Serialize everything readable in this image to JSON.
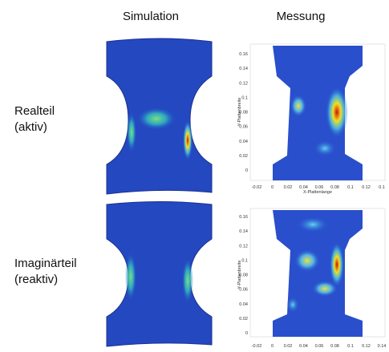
{
  "columns": {
    "simulation": "Simulation",
    "measurement": "Messung"
  },
  "rows": [
    {
      "label": [
        "Realteil",
        "(aktiv)"
      ],
      "plot": {
        "yticks": [
          "0.16",
          "0.14",
          "0.12",
          "0.1",
          "0.08",
          "0.06",
          "0.04",
          "0.02",
          "0"
        ],
        "xticks": [
          "-0.02",
          "0",
          "0.02",
          "0.04",
          "0.06",
          "0.08",
          "0.1",
          "0.12",
          "0.1"
        ],
        "xlabel": "X-Plattenlange",
        "ylabel": "Y-Plattenbreite"
      }
    },
    {
      "label": [
        "Imaginärteil",
        "(reaktiv)"
      ],
      "plot": {
        "yticks": [
          "0.16",
          "0.14",
          "0.12",
          "0.1",
          "0.08",
          "0.06",
          "0.04",
          "0.02",
          "0"
        ],
        "xticks": [
          "-0.02",
          "0",
          "0.02",
          "0.04",
          "0.06",
          "0.08",
          "0.1",
          "0.12",
          "0.14"
        ],
        "ylabel": "Y-Plattenbreite"
      }
    }
  ]
}
